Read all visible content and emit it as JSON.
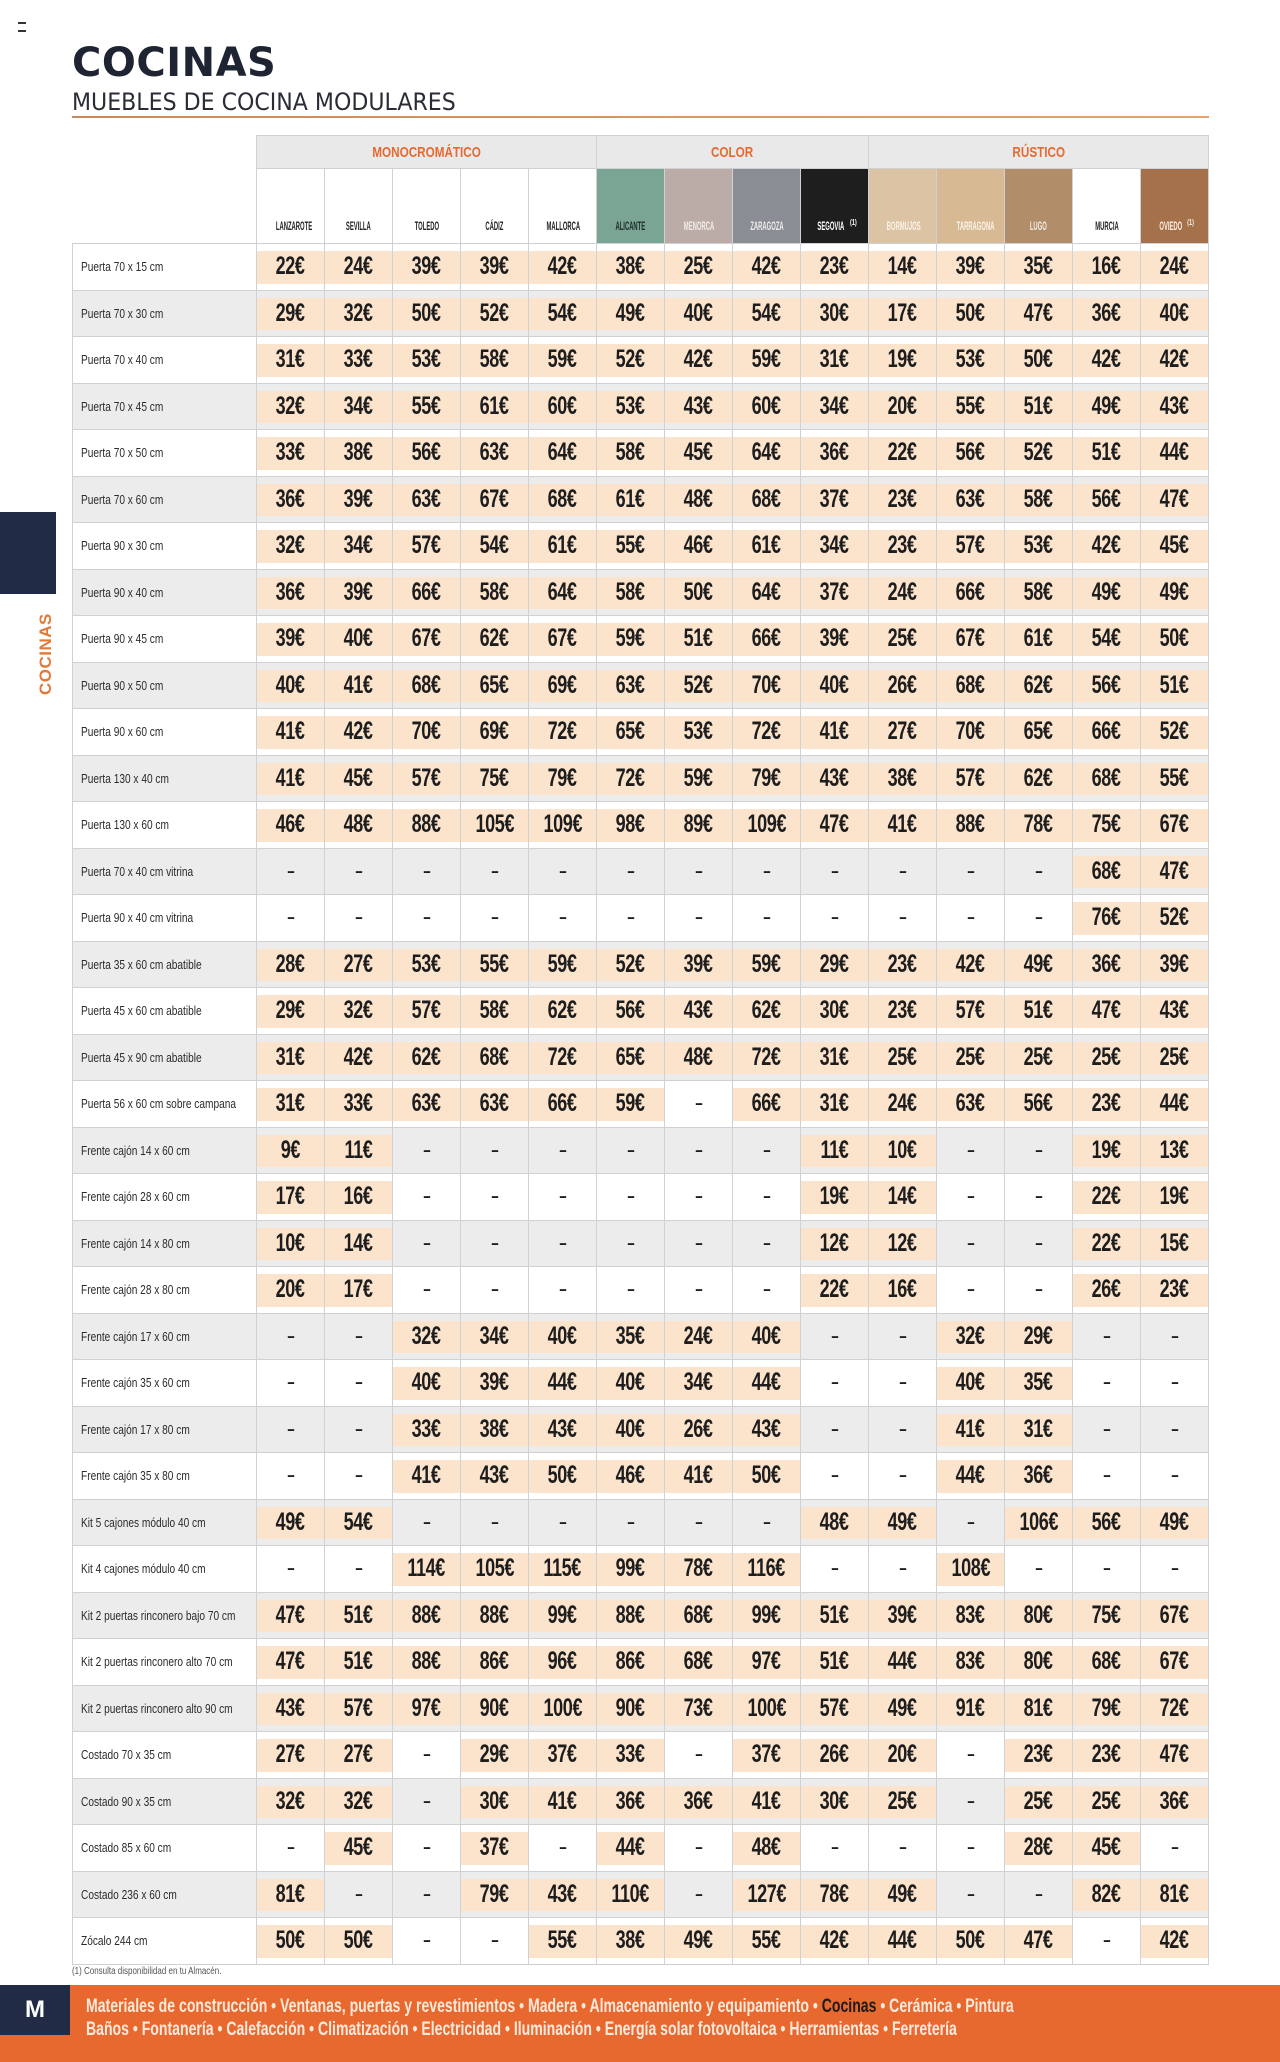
{
  "header": {
    "title": "COCINAS",
    "subtitle": "MUEBLES DE COCINA MODULARES"
  },
  "side_tab": {
    "label": "COCINAS"
  },
  "colors": {
    "accent": "#e8692f",
    "navy": "#212b45",
    "price_fill": "#fbe3cc"
  },
  "groups": [
    {
      "label": "MONOCROMÁTICO",
      "span": 5
    },
    {
      "label": "COLOR",
      "span": 4
    },
    {
      "label": "RÚSTICO",
      "span": 5
    }
  ],
  "columns": [
    {
      "name": "LANZAROTE",
      "swatch": "#ffffff",
      "text": "#222222"
    },
    {
      "name": "SEVILLA",
      "swatch": "#ffffff",
      "text": "#222222"
    },
    {
      "name": "TOLEDO",
      "swatch": "#ffffff",
      "text": "#222222"
    },
    {
      "name": "CÁDIZ",
      "swatch": "#ffffff",
      "text": "#222222"
    },
    {
      "name": "MALLORCA",
      "swatch": "#ffffff",
      "text": "#222222"
    },
    {
      "name": "ALICANTE",
      "swatch": "#7aa595",
      "text": "#1d2a25"
    },
    {
      "name": "MENORCA",
      "swatch": "#bbaca7",
      "text": "#f2ecea"
    },
    {
      "name": "ZARAGOZA",
      "swatch": "#8a8d93",
      "text": "#eeeeee"
    },
    {
      "name": "SEGOVIA",
      "sup": "(1)",
      "swatch": "#1e1e1e",
      "text": "#ffffff"
    },
    {
      "name": "BORMUJOS",
      "swatch": "#dcc3a4",
      "text": "#fbf3ea"
    },
    {
      "name": "TARRAGONA",
      "swatch": "#d7b994",
      "text": "#fbf3ea"
    },
    {
      "name": "LUGO",
      "swatch": "#b18e69",
      "text": "#f6ece2"
    },
    {
      "name": "MURCIA",
      "swatch": "#ffffff",
      "text": "#222222"
    },
    {
      "name": "OVIEDO",
      "sup": "(1)",
      "swatch": "#a5714a",
      "text": "#fbeee4"
    }
  ],
  "rows": [
    {
      "label": "Puerta 70 x 15 cm",
      "values": [
        "22€",
        "24€",
        "39€",
        "39€",
        "42€",
        "38€",
        "25€",
        "42€",
        "23€",
        "14€",
        "39€",
        "35€",
        "16€",
        "24€"
      ]
    },
    {
      "label": "Puerta 70 x 30 cm",
      "values": [
        "29€",
        "32€",
        "50€",
        "52€",
        "54€",
        "49€",
        "40€",
        "54€",
        "30€",
        "17€",
        "50€",
        "47€",
        "36€",
        "40€"
      ]
    },
    {
      "label": "Puerta 70 x 40 cm",
      "values": [
        "31€",
        "33€",
        "53€",
        "58€",
        "59€",
        "52€",
        "42€",
        "59€",
        "31€",
        "19€",
        "53€",
        "50€",
        "42€",
        "42€"
      ]
    },
    {
      "label": "Puerta 70 x 45 cm",
      "values": [
        "32€",
        "34€",
        "55€",
        "61€",
        "60€",
        "53€",
        "43€",
        "60€",
        "34€",
        "20€",
        "55€",
        "51€",
        "49€",
        "43€"
      ]
    },
    {
      "label": "Puerta 70 x 50 cm",
      "values": [
        "33€",
        "38€",
        "56€",
        "63€",
        "64€",
        "58€",
        "45€",
        "64€",
        "36€",
        "22€",
        "56€",
        "52€",
        "51€",
        "44€"
      ]
    },
    {
      "label": "Puerta 70 x 60 cm",
      "values": [
        "36€",
        "39€",
        "63€",
        "67€",
        "68€",
        "61€",
        "48€",
        "68€",
        "37€",
        "23€",
        "63€",
        "58€",
        "56€",
        "47€"
      ]
    },
    {
      "label": "Puerta 90 x 30 cm",
      "values": [
        "32€",
        "34€",
        "57€",
        "54€",
        "61€",
        "55€",
        "46€",
        "61€",
        "34€",
        "23€",
        "57€",
        "53€",
        "42€",
        "45€"
      ]
    },
    {
      "label": "Puerta 90 x 40 cm",
      "values": [
        "36€",
        "39€",
        "66€",
        "58€",
        "64€",
        "58€",
        "50€",
        "64€",
        "37€",
        "24€",
        "66€",
        "58€",
        "49€",
        "49€"
      ]
    },
    {
      "label": "Puerta 90 x 45 cm",
      "values": [
        "39€",
        "40€",
        "67€",
        "62€",
        "67€",
        "59€",
        "51€",
        "66€",
        "39€",
        "25€",
        "67€",
        "61€",
        "54€",
        "50€"
      ]
    },
    {
      "label": "Puerta 90 x 50 cm",
      "values": [
        "40€",
        "41€",
        "68€",
        "65€",
        "69€",
        "63€",
        "52€",
        "70€",
        "40€",
        "26€",
        "68€",
        "62€",
        "56€",
        "51€"
      ]
    },
    {
      "label": "Puerta 90 x 60 cm",
      "values": [
        "41€",
        "42€",
        "70€",
        "69€",
        "72€",
        "65€",
        "53€",
        "72€",
        "41€",
        "27€",
        "70€",
        "65€",
        "66€",
        "52€"
      ]
    },
    {
      "label": "Puerta 130 x 40 cm",
      "values": [
        "41€",
        "45€",
        "57€",
        "75€",
        "79€",
        "72€",
        "59€",
        "79€",
        "43€",
        "38€",
        "57€",
        "62€",
        "68€",
        "55€"
      ]
    },
    {
      "label": "Puerta 130 x 60 cm",
      "values": [
        "46€",
        "48€",
        "88€",
        "105€",
        "109€",
        "98€",
        "89€",
        "109€",
        "47€",
        "41€",
        "88€",
        "78€",
        "75€",
        "67€"
      ]
    },
    {
      "label": "Puerta 70 x 40 cm vitrina",
      "values": [
        "–",
        "–",
        "–",
        "–",
        "–",
        "–",
        "–",
        "–",
        "–",
        "–",
        "–",
        "–",
        "68€",
        "47€"
      ]
    },
    {
      "label": "Puerta 90 x 40 cm vitrina",
      "values": [
        "–",
        "–",
        "–",
        "–",
        "–",
        "–",
        "–",
        "–",
        "–",
        "–",
        "–",
        "–",
        "76€",
        "52€"
      ]
    },
    {
      "label": "Puerta 35 x 60 cm abatible",
      "values": [
        "28€",
        "27€",
        "53€",
        "55€",
        "59€",
        "52€",
        "39€",
        "59€",
        "29€",
        "23€",
        "42€",
        "49€",
        "36€",
        "39€"
      ]
    },
    {
      "label": "Puerta 45 x 60 cm abatible",
      "values": [
        "29€",
        "32€",
        "57€",
        "58€",
        "62€",
        "56€",
        "43€",
        "62€",
        "30€",
        "23€",
        "57€",
        "51€",
        "47€",
        "43€"
      ]
    },
    {
      "label": "Puerta 45 x 90 cm abatible",
      "values": [
        "31€",
        "42€",
        "62€",
        "68€",
        "72€",
        "65€",
        "48€",
        "72€",
        "31€",
        "25€",
        "25€",
        "25€",
        "25€",
        "25€"
      ]
    },
    {
      "label": "Puerta 56 x 60 cm sobre campana",
      "values": [
        "31€",
        "33€",
        "63€",
        "63€",
        "66€",
        "59€",
        "–",
        "66€",
        "31€",
        "24€",
        "63€",
        "56€",
        "23€",
        "44€"
      ]
    },
    {
      "label": "Frente cajón 14 x 60 cm",
      "values": [
        "9€",
        "11€",
        "–",
        "–",
        "–",
        "–",
        "–",
        "–",
        "11€",
        "10€",
        "–",
        "–",
        "19€",
        "13€"
      ]
    },
    {
      "label": "Frente cajón 28 x 60 cm",
      "values": [
        "17€",
        "16€",
        "–",
        "–",
        "–",
        "–",
        "–",
        "–",
        "19€",
        "14€",
        "–",
        "–",
        "22€",
        "19€"
      ]
    },
    {
      "label": "Frente cajón 14 x 80 cm",
      "values": [
        "10€",
        "14€",
        "–",
        "–",
        "–",
        "–",
        "–",
        "–",
        "12€",
        "12€",
        "–",
        "–",
        "22€",
        "15€"
      ]
    },
    {
      "label": "Frente cajón 28 x 80 cm",
      "values": [
        "20€",
        "17€",
        "–",
        "–",
        "–",
        "–",
        "–",
        "–",
        "22€",
        "16€",
        "–",
        "–",
        "26€",
        "23€"
      ]
    },
    {
      "label": "Frente cajón 17 x 60 cm",
      "values": [
        "–",
        "–",
        "32€",
        "34€",
        "40€",
        "35€",
        "24€",
        "40€",
        "–",
        "–",
        "32€",
        "29€",
        "–",
        "–"
      ]
    },
    {
      "label": "Frente cajón 35 x 60 cm",
      "values": [
        "–",
        "–",
        "40€",
        "39€",
        "44€",
        "40€",
        "34€",
        "44€",
        "–",
        "–",
        "40€",
        "35€",
        "–",
        "–"
      ]
    },
    {
      "label": "Frente cajón 17 x 80 cm",
      "values": [
        "–",
        "–",
        "33€",
        "38€",
        "43€",
        "40€",
        "26€",
        "43€",
        "–",
        "–",
        "41€",
        "31€",
        "–",
        "–"
      ]
    },
    {
      "label": "Frente cajón 35 x 80 cm",
      "values": [
        "–",
        "–",
        "41€",
        "43€",
        "50€",
        "46€",
        "41€",
        "50€",
        "–",
        "–",
        "44€",
        "36€",
        "–",
        "–"
      ]
    },
    {
      "label": "Kit 5 cajones módulo 40 cm",
      "values": [
        "49€",
        "54€",
        "–",
        "–",
        "–",
        "–",
        "–",
        "–",
        "48€",
        "49€",
        "–",
        "106€",
        "56€",
        "49€"
      ]
    },
    {
      "label": "Kit 4 cajones módulo 40 cm",
      "values": [
        "–",
        "–",
        "114€",
        "105€",
        "115€",
        "99€",
        "78€",
        "116€",
        "–",
        "–",
        "108€",
        "–",
        "–",
        "–"
      ]
    },
    {
      "label": "Kit 2 puertas rinconero bajo 70 cm",
      "values": [
        "47€",
        "51€",
        "88€",
        "88€",
        "99€",
        "88€",
        "68€",
        "99€",
        "51€",
        "39€",
        "83€",
        "80€",
        "75€",
        "67€"
      ]
    },
    {
      "label": "Kit 2 puertas rinconero alto 70 cm",
      "values": [
        "47€",
        "51€",
        "88€",
        "86€",
        "96€",
        "86€",
        "68€",
        "97€",
        "51€",
        "44€",
        "83€",
        "80€",
        "68€",
        "67€"
      ]
    },
    {
      "label": "Kit 2 puertas rinconero alto 90 cm",
      "values": [
        "43€",
        "57€",
        "97€",
        "90€",
        "100€",
        "90€",
        "73€",
        "100€",
        "57€",
        "49€",
        "91€",
        "81€",
        "79€",
        "72€"
      ]
    },
    {
      "label": "Costado 70 x 35 cm",
      "values": [
        "27€",
        "27€",
        "–",
        "29€",
        "37€",
        "33€",
        "–",
        "37€",
        "26€",
        "20€",
        "–",
        "23€",
        "23€",
        "47€"
      ]
    },
    {
      "label": "Costado 90 x 35 cm",
      "values": [
        "32€",
        "32€",
        "–",
        "30€",
        "41€",
        "36€",
        "36€",
        "41€",
        "30€",
        "25€",
        "–",
        "25€",
        "25€",
        "36€"
      ]
    },
    {
      "label": "Costado 85 x 60 cm",
      "values": [
        "–",
        "45€",
        "–",
        "37€",
        "–",
        "44€",
        "–",
        "48€",
        "–",
        "–",
        "–",
        "28€",
        "45€",
        "–"
      ]
    },
    {
      "label": "Costado 236 x 60 cm",
      "values": [
        "81€",
        "–",
        "–",
        "79€",
        "43€",
        "110€",
        "–",
        "127€",
        "78€",
        "49€",
        "–",
        "–",
        "82€",
        "81€"
      ]
    },
    {
      "label": "Zócalo 244 cm",
      "values": [
        "50€",
        "50€",
        "–",
        "–",
        "55€",
        "38€",
        "49€",
        "55€",
        "42€",
        "44€",
        "50€",
        "47€",
        "–",
        "42€"
      ]
    }
  ],
  "footnote": "(1) Consulta disponibilidad en tu Almacén.",
  "footer": {
    "logo": "M",
    "line1": [
      {
        "label": "Materiales de construcción"
      },
      {
        "label": "Ventanas, puertas y revestimientos"
      },
      {
        "label": "Madera"
      },
      {
        "label": "Almacenamiento y equipamiento"
      },
      {
        "label": "Cocinas",
        "active": true
      },
      {
        "label": "Cerámica"
      },
      {
        "label": "Pintura"
      }
    ],
    "line2": [
      {
        "label": "Baños"
      },
      {
        "label": "Fontanería"
      },
      {
        "label": "Calefacción"
      },
      {
        "label": "Climatización"
      },
      {
        "label": "Electricidad"
      },
      {
        "label": "Iluminación"
      },
      {
        "label": "Energía solar fotovoltaica"
      },
      {
        "label": "Herramientas"
      },
      {
        "label": "Ferretería"
      }
    ],
    "separator": " • "
  }
}
